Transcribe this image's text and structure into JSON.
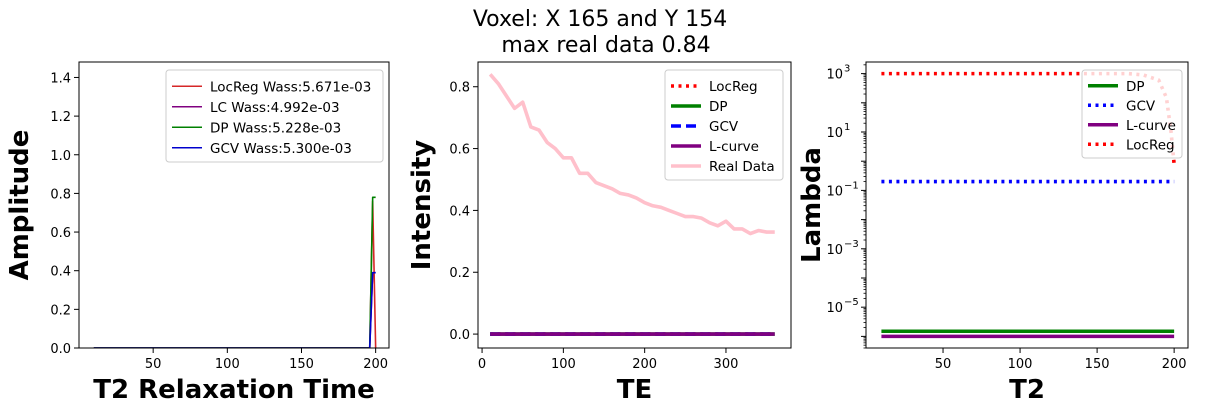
{
  "figure": {
    "title_line1": "Voxel: X 165 and Y 154",
    "title_line2": "max real data 0.84"
  },
  "chart_data": [
    {
      "type": "line",
      "xlabel": "T2 Relaxation Time",
      "ylabel": "Amplitude",
      "xlim": [
        0,
        209
      ],
      "ylim": [
        0,
        1.48
      ],
      "xticks": [
        50,
        100,
        150,
        200
      ],
      "yticks": [
        0.0,
        0.2,
        0.4,
        0.6,
        0.8,
        1.0,
        1.2,
        1.4
      ],
      "yticklabels": [
        "0.0",
        "0.2",
        "0.4",
        "0.6",
        "0.8",
        "1.0",
        "1.2",
        "1.4"
      ],
      "legend_position": "top-right",
      "series": [
        {
          "name": "LocReg Wass:5.671e-03",
          "color": "#d62728",
          "x": [
            10,
            196,
            198,
            200
          ],
          "y": [
            0,
            0,
            0.76,
            0.0
          ]
        },
        {
          "name": "LC Wass:4.992e-03",
          "color": "#800080",
          "x": [
            10,
            196,
            198,
            200
          ],
          "y": [
            0,
            0,
            0.39,
            0.39
          ]
        },
        {
          "name": "DP Wass:5.228e-03",
          "color": "#008000",
          "x": [
            10,
            196,
            198,
            200
          ],
          "y": [
            0,
            0,
            0.78,
            0.78
          ]
        },
        {
          "name": "GCV Wass:5.300e-03",
          "color": "#0000cd",
          "x": [
            10,
            196,
            198,
            200
          ],
          "y": [
            0,
            0,
            0.39,
            0.39
          ]
        }
      ]
    },
    {
      "type": "line",
      "xlabel": "TE",
      "ylabel": "Intensity",
      "xlim": [
        -5,
        380
      ],
      "ylim": [
        -0.045,
        0.88
      ],
      "xticks": [
        0,
        100,
        200,
        300
      ],
      "yticks": [
        0.0,
        0.2,
        0.4,
        0.6,
        0.8
      ],
      "yticklabels": [
        "0.0",
        "0.2",
        "0.4",
        "0.6",
        "0.8"
      ],
      "legend_position": "top-right",
      "series": [
        {
          "name": "LocReg",
          "color": "#ff0000",
          "dash": "dotted",
          "x": [
            10,
            360
          ],
          "y": [
            0,
            0
          ]
        },
        {
          "name": "DP",
          "color": "#008000",
          "dash": "solid",
          "x": [
            10,
            360
          ],
          "y": [
            0,
            0
          ]
        },
        {
          "name": "GCV",
          "color": "#0000ff",
          "dash": "dashed",
          "x": [
            10,
            360
          ],
          "y": [
            0,
            0
          ]
        },
        {
          "name": "L-curve",
          "color": "#800080",
          "dash": "solid",
          "x": [
            10,
            360
          ],
          "y": [
            0,
            0
          ]
        },
        {
          "name": "Real Data",
          "color": "#ffc0cb",
          "dash": "solid",
          "x": [
            10,
            20,
            30,
            40,
            50,
            60,
            70,
            80,
            90,
            100,
            110,
            120,
            130,
            140,
            150,
            160,
            170,
            180,
            190,
            200,
            210,
            220,
            230,
            240,
            250,
            260,
            270,
            280,
            290,
            300,
            310,
            320,
            330,
            340,
            350,
            360
          ],
          "y": [
            0.84,
            0.81,
            0.77,
            0.73,
            0.75,
            0.67,
            0.66,
            0.62,
            0.6,
            0.57,
            0.57,
            0.52,
            0.52,
            0.49,
            0.48,
            0.47,
            0.455,
            0.45,
            0.44,
            0.425,
            0.415,
            0.41,
            0.4,
            0.39,
            0.38,
            0.38,
            0.375,
            0.36,
            0.35,
            0.365,
            0.34,
            0.34,
            0.325,
            0.335,
            0.33,
            0.33
          ]
        }
      ]
    },
    {
      "type": "line",
      "xlabel": "T2",
      "ylabel": "Lambda",
      "yscale": "log",
      "xlim": [
        0,
        209
      ],
      "ylim": [
        4e-07,
        2500.0
      ],
      "xticks": [
        50,
        100,
        150,
        200
      ],
      "yticks_exp": [
        -5,
        -3,
        -1,
        1,
        3
      ],
      "yticklabels": [
        "10",
        "10",
        "10",
        "10",
        "10"
      ],
      "legend_position": "top-right",
      "series": [
        {
          "name": "DP",
          "color": "#008000",
          "dash": "solid",
          "x": [
            10,
            200
          ],
          "y": [
            1.5e-06,
            1.5e-06
          ]
        },
        {
          "name": "GCV",
          "color": "#0000ff",
          "dash": "dotted",
          "x": [
            10,
            200
          ],
          "y": [
            0.2,
            0.2
          ]
        },
        {
          "name": "L-curve",
          "color": "#800080",
          "dash": "solid",
          "x": [
            10,
            200
          ],
          "y": [
            1e-06,
            1e-06
          ]
        },
        {
          "name": "LocReg",
          "color": "#ff0000",
          "dash": "dotted",
          "x": [
            10,
            170,
            180,
            190,
            195,
            198,
            200
          ],
          "y": [
            1000,
            1000,
            900,
            600,
            150,
            10,
            0.8
          ]
        }
      ]
    }
  ]
}
